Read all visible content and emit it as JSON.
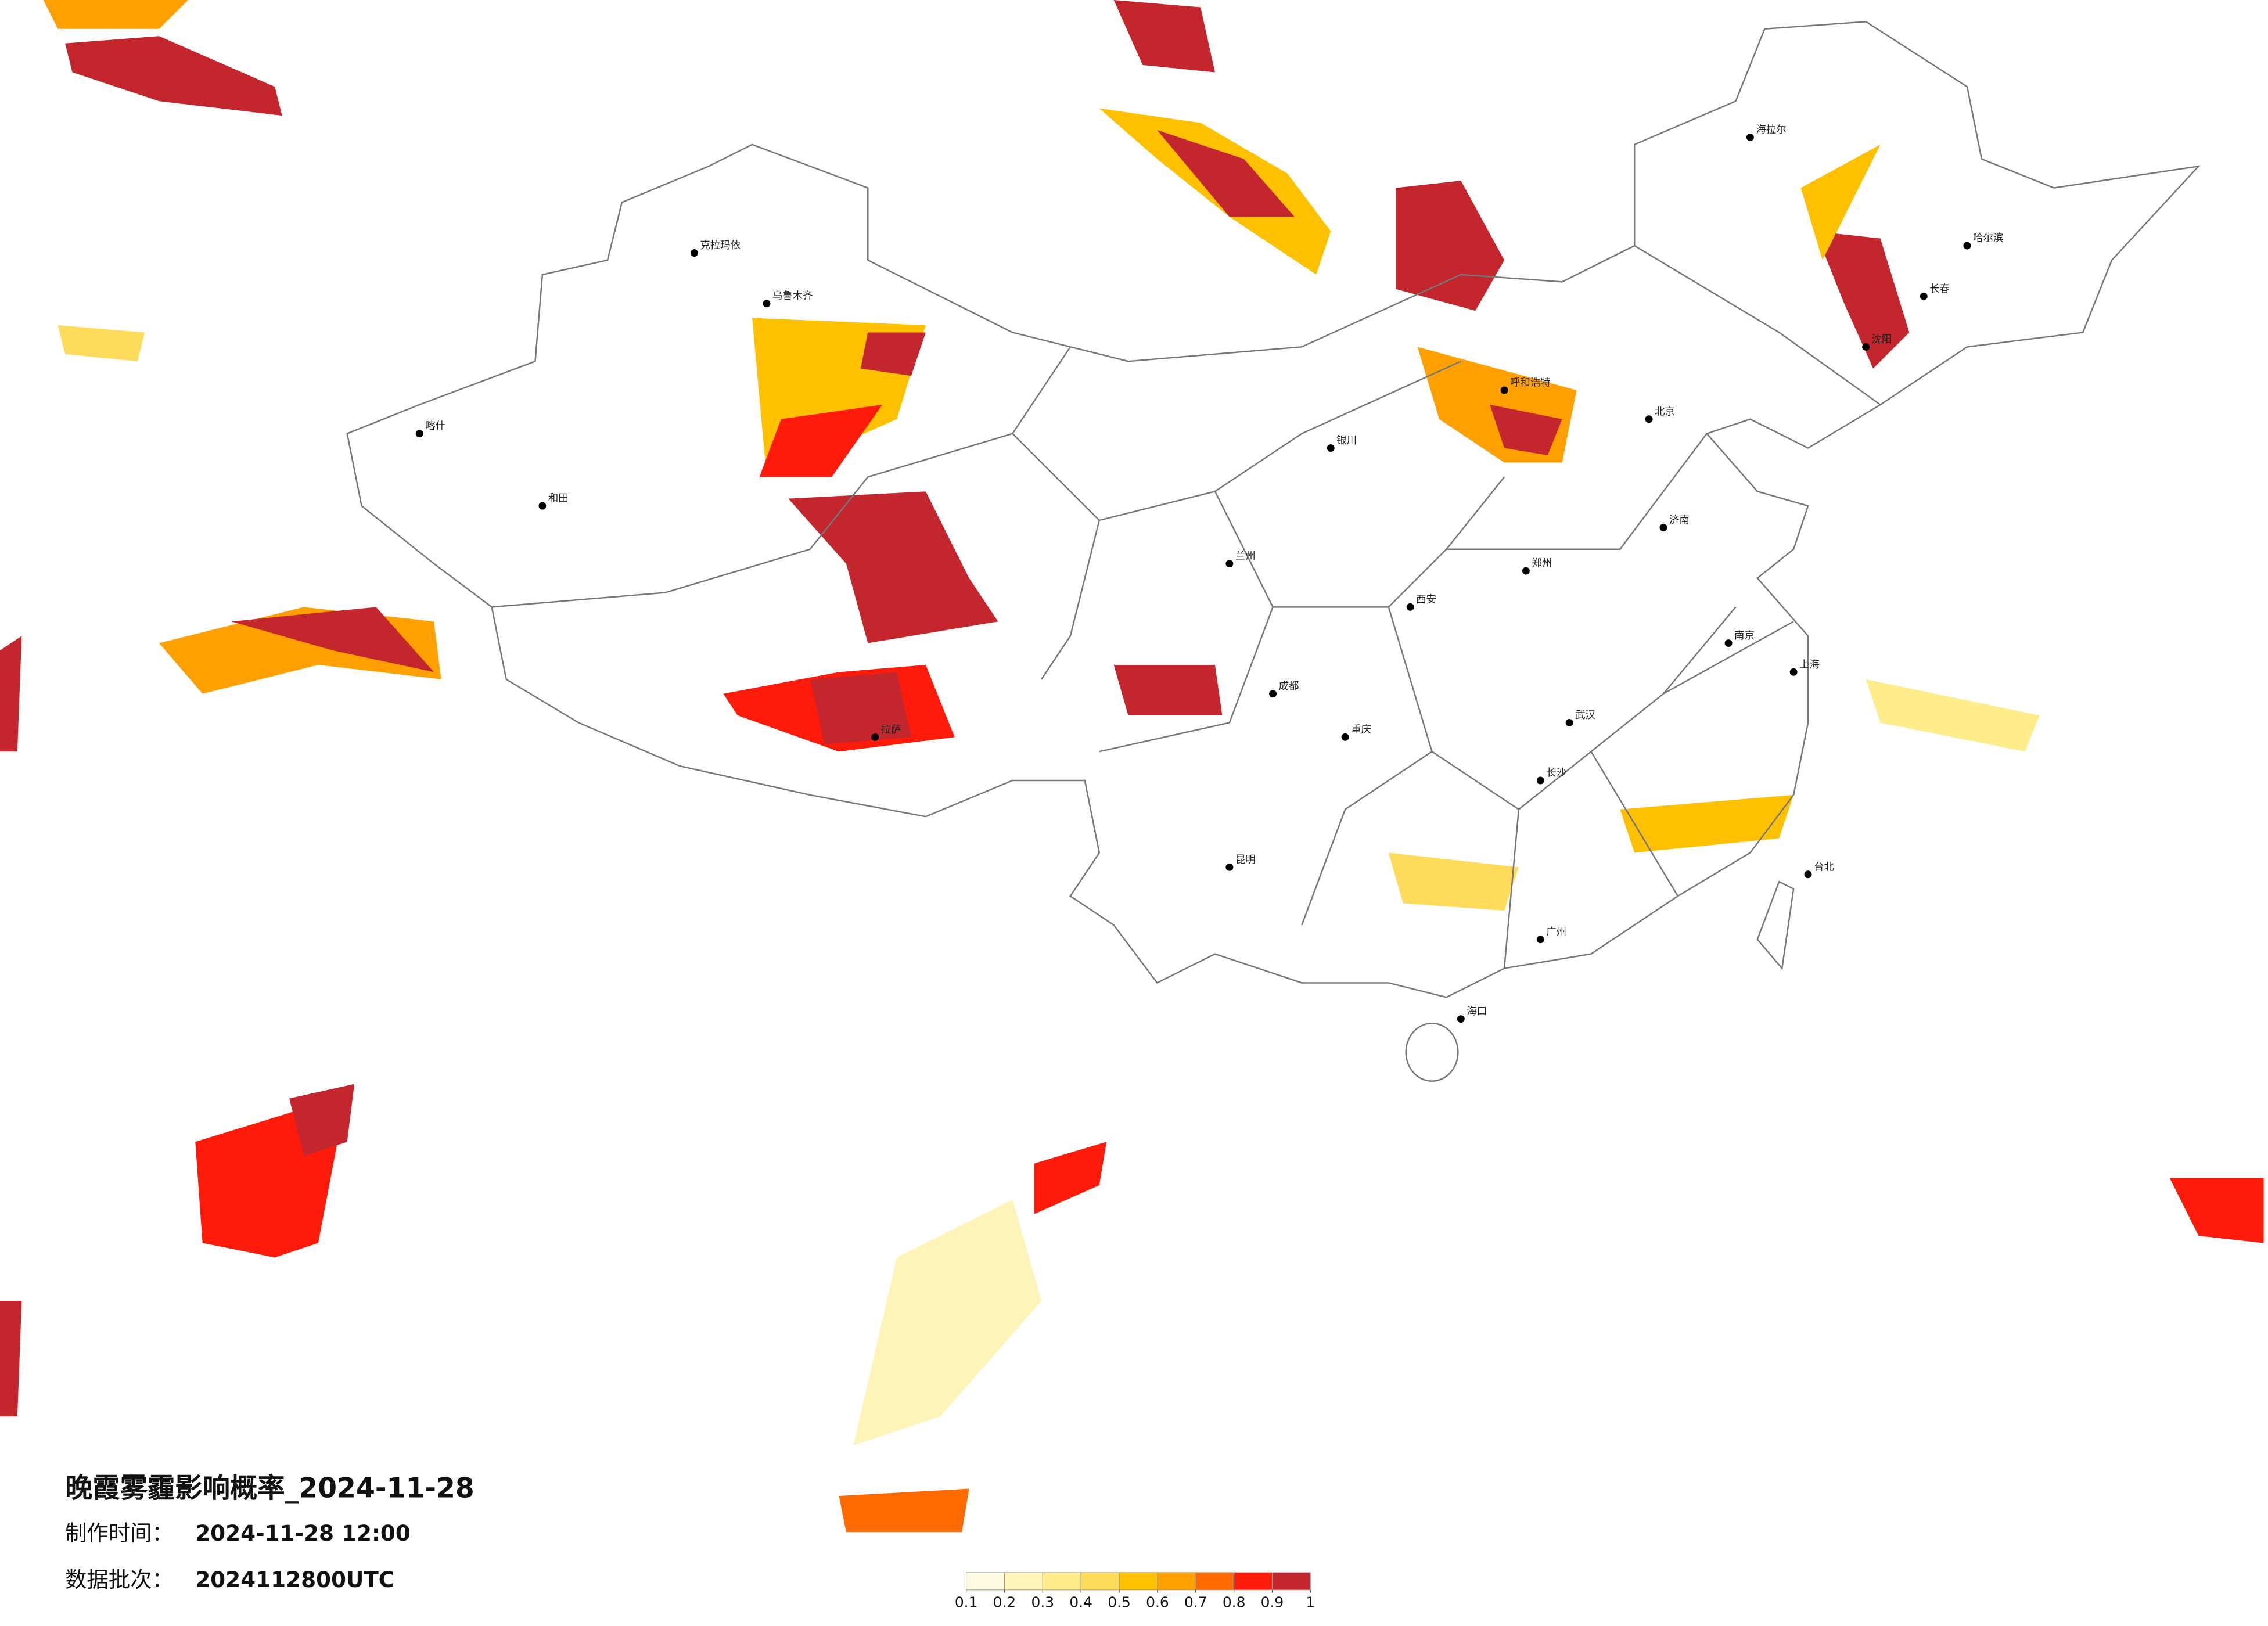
{
  "title": "晚霞雾霾影响概率_2024-11-28",
  "production": {
    "label": "制作时间：",
    "value": "2024-11-28 12:00"
  },
  "batch": {
    "label": "数据批次：",
    "value": "2024112800UTC"
  },
  "legend": {
    "ticks": [
      0.1,
      0.2,
      0.3,
      0.4,
      0.5,
      0.6,
      0.7,
      0.8,
      0.9,
      1
    ],
    "colors": [
      "#fffbe3",
      "#fff4b8",
      "#ffec8a",
      "#ffdb5c",
      "#ffc000",
      "#ffa000",
      "#ff6a00",
      "#ff1a0a",
      "#c4262e"
    ]
  },
  "cities": [
    "北京",
    "上海",
    "广州",
    "成都",
    "西安",
    "武汉",
    "哈尔滨",
    "乌鲁木齐",
    "拉萨",
    "昆明",
    "长沙",
    "沈阳",
    "郑州",
    "重庆",
    "南京",
    "兰州",
    "呼和浩特",
    "海口",
    "台北",
    "济南",
    "喀什",
    "克拉玛依",
    "和田",
    "银川",
    "海拉尔",
    "长春"
  ]
}
